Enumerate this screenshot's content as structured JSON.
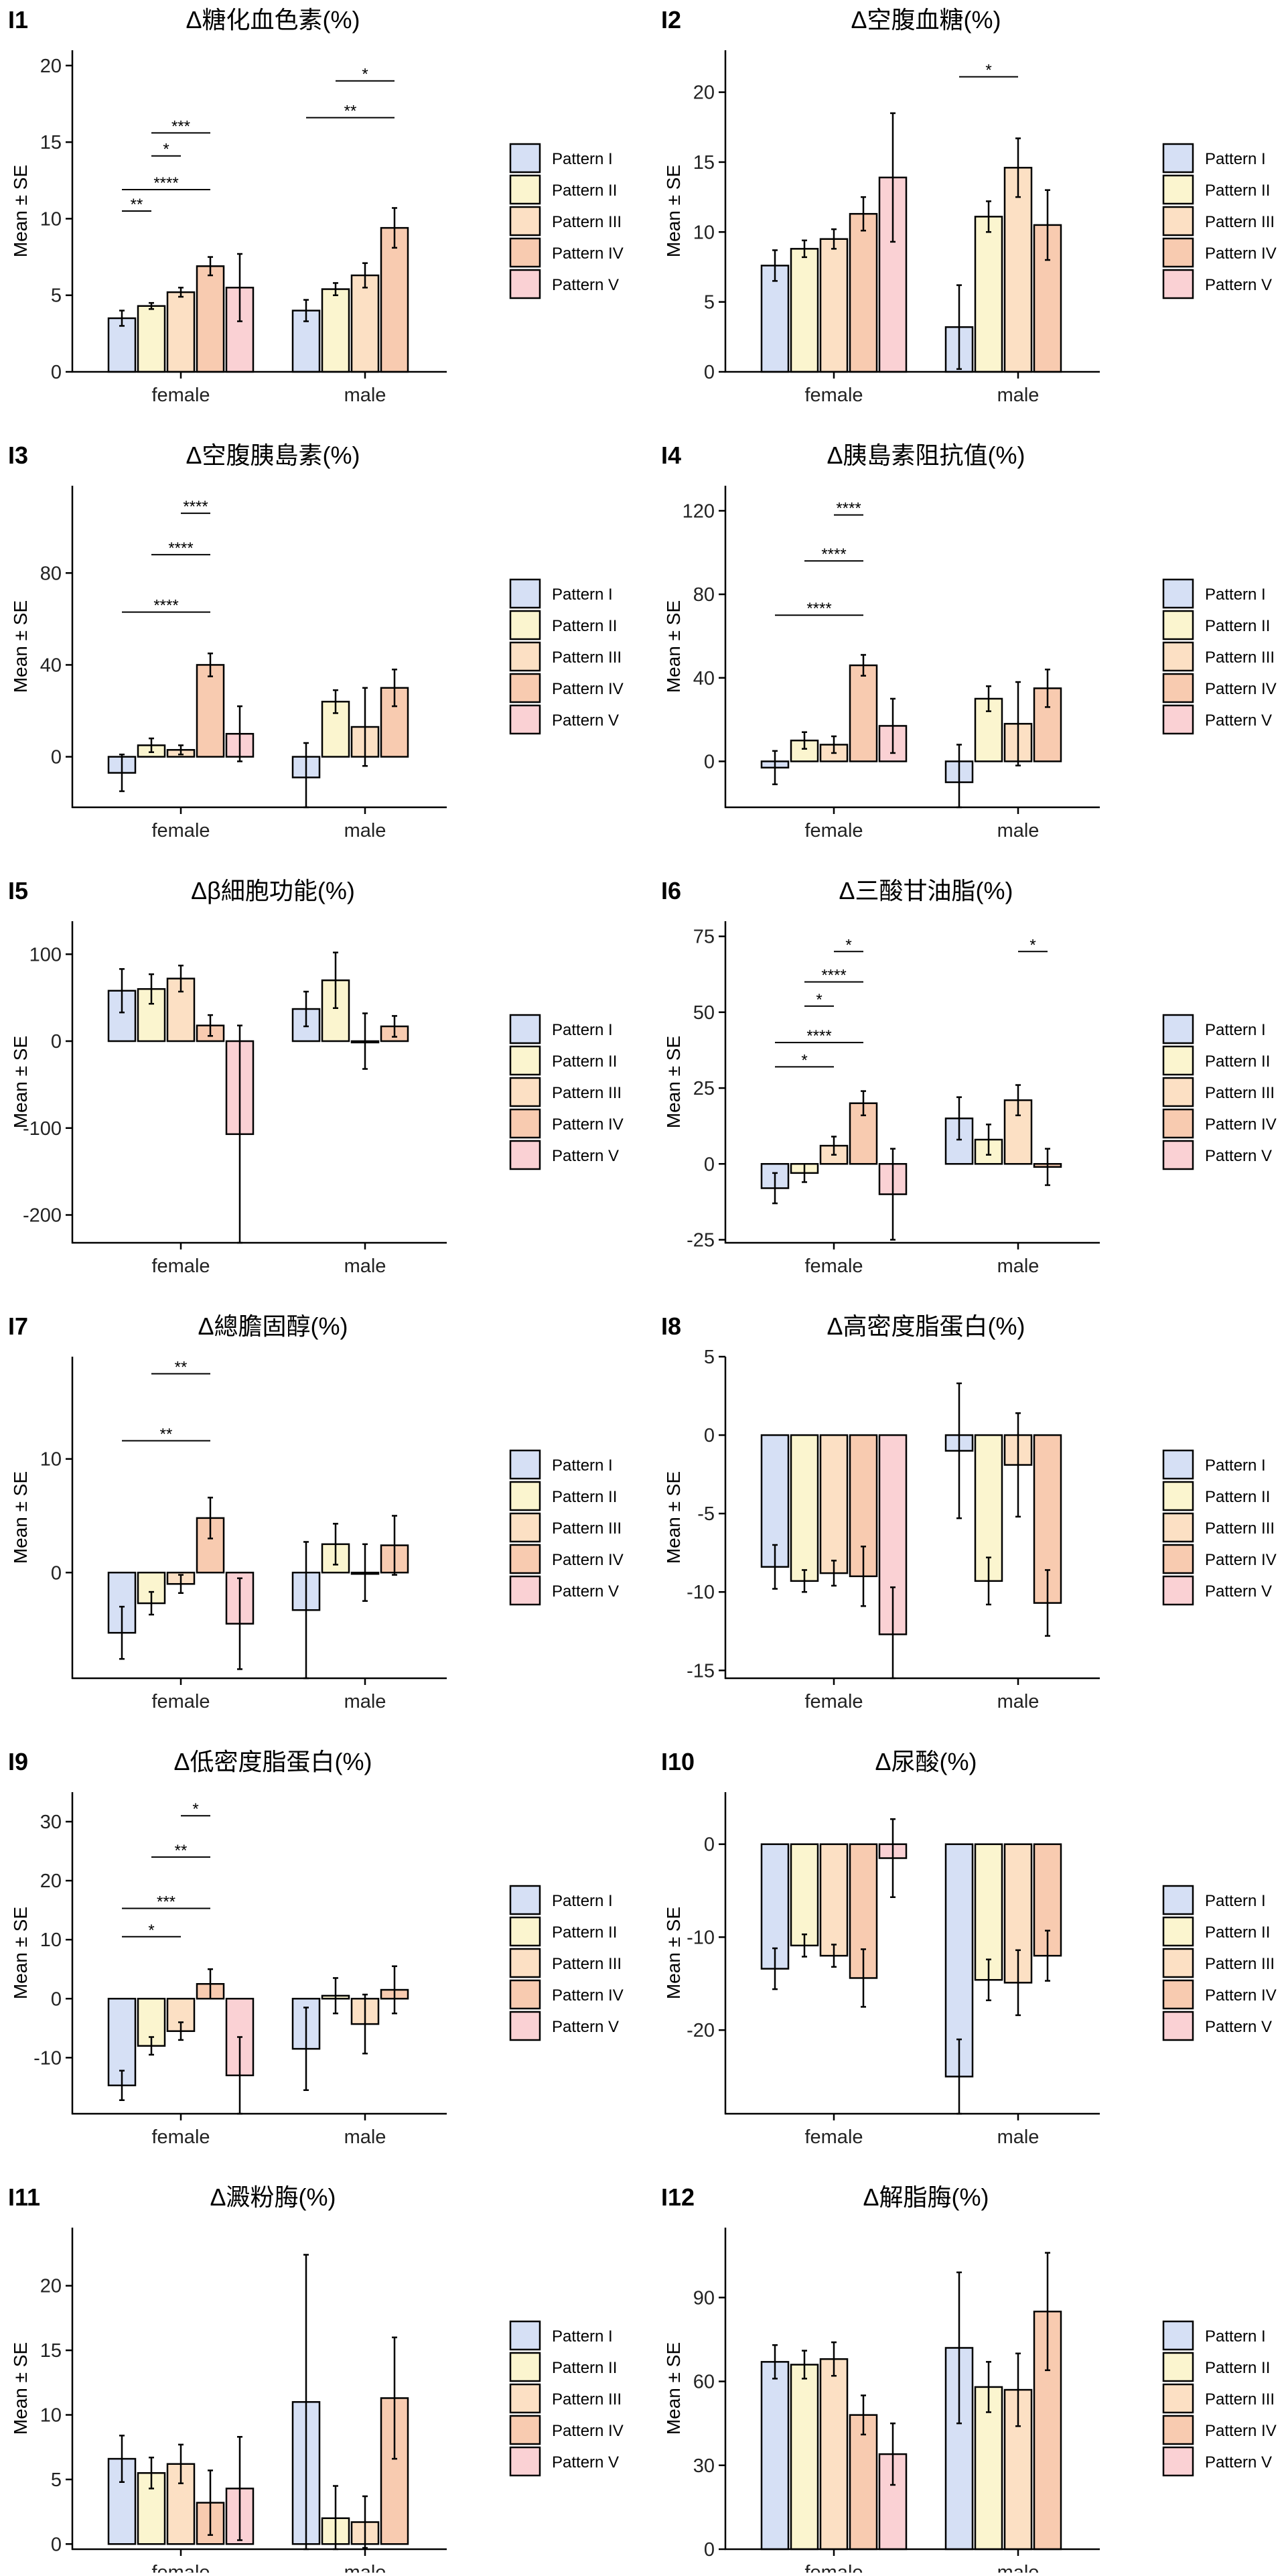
{
  "ylabel": "Mean ± SE",
  "legend": [
    "Pattern I",
    "Pattern II",
    "Pattern III",
    "Pattern IV",
    "Pattern V"
  ],
  "colors": [
    "#D6E0F5",
    "#FBF5CF",
    "#FCE0C4",
    "#F8CBB0",
    "#FAD1D4"
  ],
  "chart_data": [
    {
      "type": "bar",
      "tag": "I1",
      "title": "Δ糖化血色素(%)",
      "categories": [
        "female",
        "male"
      ],
      "ylim": [
        0,
        21
      ],
      "ticks": [
        0,
        5,
        10,
        15,
        20
      ],
      "series": [
        {
          "name": "Pattern I",
          "values": [
            3.5,
            4.0
          ],
          "se": [
            0.5,
            0.7
          ]
        },
        {
          "name": "Pattern II",
          "values": [
            4.3,
            5.4
          ],
          "se": [
            0.2,
            0.4
          ]
        },
        {
          "name": "Pattern III",
          "values": [
            5.2,
            6.3
          ],
          "se": [
            0.3,
            0.8
          ]
        },
        {
          "name": "Pattern IV",
          "values": [
            6.9,
            9.4
          ],
          "se": [
            0.6,
            1.3
          ]
        },
        {
          "name": "Pattern V",
          "values": [
            5.5,
            null
          ],
          "se": [
            2.2,
            null
          ]
        }
      ],
      "sig": [
        {
          "cat": 0,
          "from": 0,
          "to": 1,
          "y": 10.5,
          "label": "**"
        },
        {
          "cat": 0,
          "from": 0,
          "to": 3,
          "y": 11.9,
          "label": "****"
        },
        {
          "cat": 0,
          "from": 1,
          "to": 2,
          "y": 14.1,
          "label": "*"
        },
        {
          "cat": 0,
          "from": 1,
          "to": 3,
          "y": 15.6,
          "label": "***"
        },
        {
          "cat": 1,
          "from": 0,
          "to": 3,
          "y": 16.6,
          "label": "**"
        },
        {
          "cat": 1,
          "from": 1,
          "to": 3,
          "y": 19.0,
          "label": "*"
        }
      ]
    },
    {
      "type": "bar",
      "tag": "I2",
      "title": "Δ空腹血糖(%)",
      "categories": [
        "female",
        "male"
      ],
      "ylim": [
        0,
        23
      ],
      "ticks": [
        0,
        5,
        10,
        15,
        20
      ],
      "series": [
        {
          "name": "Pattern I",
          "values": [
            7.6,
            3.2
          ],
          "se": [
            1.1,
            3.0
          ]
        },
        {
          "name": "Pattern II",
          "values": [
            8.8,
            11.1
          ],
          "se": [
            0.6,
            1.1
          ]
        },
        {
          "name": "Pattern III",
          "values": [
            9.5,
            14.6
          ],
          "se": [
            0.7,
            2.1
          ]
        },
        {
          "name": "Pattern IV",
          "values": [
            11.3,
            10.5
          ],
          "se": [
            1.2,
            2.5
          ]
        },
        {
          "name": "Pattern V",
          "values": [
            13.9,
            null
          ],
          "se": [
            4.6,
            null
          ]
        }
      ],
      "sig": [
        {
          "cat": 1,
          "from": 0,
          "to": 2,
          "y": 21.1,
          "label": "*"
        }
      ]
    },
    {
      "type": "bar",
      "tag": "I3",
      "title": "Δ空腹胰島素(%)",
      "categories": [
        "female",
        "male"
      ],
      "ylim": [
        -22,
        118
      ],
      "ticks": [
        0,
        40,
        80
      ],
      "series": [
        {
          "name": "Pattern I",
          "values": [
            -7,
            -9
          ],
          "se": [
            8,
            15
          ]
        },
        {
          "name": "Pattern II",
          "values": [
            5,
            24
          ],
          "se": [
            3,
            5
          ]
        },
        {
          "name": "Pattern III",
          "values": [
            3,
            13
          ],
          "se": [
            2,
            17
          ]
        },
        {
          "name": "Pattern IV",
          "values": [
            40,
            30
          ],
          "se": [
            5,
            8
          ]
        },
        {
          "name": "Pattern V",
          "values": [
            10,
            null
          ],
          "se": [
            12,
            null
          ]
        }
      ],
      "sig": [
        {
          "cat": 0,
          "from": 0,
          "to": 3,
          "y": 63,
          "label": "****"
        },
        {
          "cat": 0,
          "from": 1,
          "to": 3,
          "y": 88,
          "label": "****"
        },
        {
          "cat": 0,
          "from": 2,
          "to": 3,
          "y": 106,
          "label": "****"
        }
      ]
    },
    {
      "type": "bar",
      "tag": "I4",
      "title": "Δ胰島素阻抗值(%)",
      "categories": [
        "female",
        "male"
      ],
      "ylim": [
        -22,
        132
      ],
      "ticks": [
        0,
        40,
        80,
        120
      ],
      "series": [
        {
          "name": "Pattern I",
          "values": [
            -3,
            -10
          ],
          "se": [
            8,
            18
          ]
        },
        {
          "name": "Pattern II",
          "values": [
            10,
            30
          ],
          "se": [
            4,
            6
          ]
        },
        {
          "name": "Pattern III",
          "values": [
            8,
            18
          ],
          "se": [
            4,
            20
          ]
        },
        {
          "name": "Pattern IV",
          "values": [
            46,
            35
          ],
          "se": [
            5,
            9
          ]
        },
        {
          "name": "Pattern V",
          "values": [
            17,
            null
          ],
          "se": [
            13,
            null
          ]
        }
      ],
      "sig": [
        {
          "cat": 0,
          "from": 0,
          "to": 3,
          "y": 70,
          "label": "****"
        },
        {
          "cat": 0,
          "from": 1,
          "to": 3,
          "y": 96,
          "label": "****"
        },
        {
          "cat": 0,
          "from": 2,
          "to": 3,
          "y": 118,
          "label": "****"
        }
      ]
    },
    {
      "type": "bar",
      "tag": "I5",
      "title": "Δβ細胞功能(%)",
      "categories": [
        "female",
        "male"
      ],
      "ylim": [
        -232,
        138
      ],
      "ticks": [
        -200,
        -100,
        0,
        100
      ],
      "series": [
        {
          "name": "Pattern I",
          "values": [
            58,
            37
          ],
          "se": [
            25,
            20
          ]
        },
        {
          "name": "Pattern II",
          "values": [
            60,
            70
          ],
          "se": [
            17,
            32
          ]
        },
        {
          "name": "Pattern III",
          "values": [
            72,
            0
          ],
          "se": [
            15,
            32
          ]
        },
        {
          "name": "Pattern IV",
          "values": [
            18,
            17
          ],
          "se": [
            12,
            12
          ]
        },
        {
          "name": "Pattern V",
          "values": [
            -107,
            null
          ],
          "se": [
            125,
            null
          ]
        }
      ],
      "sig": []
    },
    {
      "type": "bar",
      "tag": "I6",
      "title": "Δ三酸甘油脂(%)",
      "categories": [
        "female",
        "male"
      ],
      "ylim": [
        -26,
        80
      ],
      "ticks": [
        -25,
        0,
        25,
        50,
        75
      ],
      "series": [
        {
          "name": "Pattern I",
          "values": [
            -8,
            15
          ],
          "se": [
            5,
            7
          ]
        },
        {
          "name": "Pattern II",
          "values": [
            -3,
            8
          ],
          "se": [
            3,
            5
          ]
        },
        {
          "name": "Pattern III",
          "values": [
            6,
            21
          ],
          "se": [
            3,
            5
          ]
        },
        {
          "name": "Pattern IV",
          "values": [
            20,
            -1
          ],
          "se": [
            4,
            6
          ]
        },
        {
          "name": "Pattern V",
          "values": [
            -10,
            null
          ],
          "se": [
            15,
            null
          ]
        }
      ],
      "sig": [
        {
          "cat": 0,
          "from": 0,
          "to": 2,
          "y": 32,
          "label": "*"
        },
        {
          "cat": 0,
          "from": 0,
          "to": 3,
          "y": 40,
          "label": "****"
        },
        {
          "cat": 0,
          "from": 1,
          "to": 2,
          "y": 52,
          "label": "*"
        },
        {
          "cat": 0,
          "from": 1,
          "to": 3,
          "y": 60,
          "label": "****"
        },
        {
          "cat": 0,
          "from": 2,
          "to": 3,
          "y": 70,
          "label": "*"
        },
        {
          "cat": 1,
          "from": 2,
          "to": 3,
          "y": 70,
          "label": "*"
        }
      ]
    },
    {
      "type": "bar",
      "tag": "I7",
      "title": "Δ總膽固醇(%)",
      "categories": [
        "female",
        "male"
      ],
      "ylim": [
        -9.3,
        19
      ],
      "ticks": [
        0,
        10
      ],
      "series": [
        {
          "name": "Pattern I",
          "values": [
            -5.3,
            -3.3
          ],
          "se": [
            2.3,
            6.0
          ]
        },
        {
          "name": "Pattern II",
          "values": [
            -2.7,
            2.5
          ],
          "se": [
            1.0,
            1.8
          ]
        },
        {
          "name": "Pattern III",
          "values": [
            -1.0,
            0.0
          ],
          "se": [
            0.8,
            2.5
          ]
        },
        {
          "name": "Pattern IV",
          "values": [
            4.8,
            2.4
          ],
          "se": [
            1.8,
            2.6
          ]
        },
        {
          "name": "Pattern V",
          "values": [
            -4.5,
            null
          ],
          "se": [
            4.0,
            null
          ]
        }
      ],
      "sig": [
        {
          "cat": 0,
          "from": 0,
          "to": 3,
          "y": 11.6,
          "label": "**"
        },
        {
          "cat": 0,
          "from": 1,
          "to": 3,
          "y": 17.5,
          "label": "**"
        }
      ]
    },
    {
      "type": "bar",
      "tag": "I8",
      "title": "Δ高密度脂蛋白(%)",
      "categories": [
        "female",
        "male"
      ],
      "ylim": [
        -15.5,
        5
      ],
      "ticks": [
        -15,
        -10,
        -5,
        0,
        5
      ],
      "series": [
        {
          "name": "Pattern I",
          "values": [
            -8.4,
            -1.0
          ],
          "se": [
            1.4,
            4.3
          ]
        },
        {
          "name": "Pattern II",
          "values": [
            -9.3,
            -9.3
          ],
          "se": [
            0.7,
            1.5
          ]
        },
        {
          "name": "Pattern III",
          "values": [
            -8.8,
            -1.9
          ],
          "se": [
            0.8,
            3.3
          ]
        },
        {
          "name": "Pattern IV",
          "values": [
            -9.0,
            -10.7
          ],
          "se": [
            1.9,
            2.1
          ]
        },
        {
          "name": "Pattern V",
          "values": [
            -12.7,
            null
          ],
          "se": [
            3.0,
            null
          ]
        }
      ],
      "sig": []
    },
    {
      "type": "bar",
      "tag": "I9",
      "title": "Δ低密度脂蛋白(%)",
      "categories": [
        "female",
        "male"
      ],
      "ylim": [
        -19.5,
        35
      ],
      "ticks": [
        -10,
        0,
        10,
        20,
        30
      ],
      "series": [
        {
          "name": "Pattern I",
          "values": [
            -14.7,
            -8.5
          ],
          "se": [
            2.5,
            7.0
          ]
        },
        {
          "name": "Pattern II",
          "values": [
            -8.0,
            0.5
          ],
          "se": [
            1.5,
            3.0
          ]
        },
        {
          "name": "Pattern III",
          "values": [
            -5.5,
            -4.3
          ],
          "se": [
            1.5,
            5.0
          ]
        },
        {
          "name": "Pattern IV",
          "values": [
            2.5,
            1.5
          ],
          "se": [
            2.5,
            4.0
          ]
        },
        {
          "name": "Pattern V",
          "values": [
            -13.0,
            null
          ],
          "se": [
            6.5,
            null
          ]
        }
      ],
      "sig": [
        {
          "cat": 0,
          "from": 0,
          "to": 2,
          "y": 10.5,
          "label": "*"
        },
        {
          "cat": 0,
          "from": 0,
          "to": 3,
          "y": 15.3,
          "label": "***"
        },
        {
          "cat": 0,
          "from": 1,
          "to": 3,
          "y": 24.0,
          "label": "**"
        },
        {
          "cat": 0,
          "from": 2,
          "to": 3,
          "y": 31.0,
          "label": "*"
        }
      ]
    },
    {
      "type": "bar",
      "tag": "I10",
      "title": "Δ尿酸(%)",
      "categories": [
        "female",
        "male"
      ],
      "ylim": [
        -29,
        5.6
      ],
      "ticks": [
        -20,
        -10,
        0
      ],
      "series": [
        {
          "name": "Pattern I",
          "values": [
            -13.4,
            -25.0
          ],
          "se": [
            2.2,
            4.0
          ]
        },
        {
          "name": "Pattern II",
          "values": [
            -10.9,
            -14.6
          ],
          "se": [
            1.2,
            2.2
          ]
        },
        {
          "name": "Pattern III",
          "values": [
            -12.0,
            -14.9
          ],
          "se": [
            1.2,
            3.5
          ]
        },
        {
          "name": "Pattern IV",
          "values": [
            -14.4,
            -12.0
          ],
          "se": [
            3.1,
            2.7
          ]
        },
        {
          "name": "Pattern V",
          "values": [
            -1.5,
            null
          ],
          "se": [
            4.2,
            null
          ]
        }
      ],
      "sig": []
    },
    {
      "type": "bar",
      "tag": "I11",
      "title": "Δ澱粉脢(%)",
      "categories": [
        "female",
        "male"
      ],
      "ylim": [
        -0.4,
        24.5
      ],
      "ticks": [
        0,
        5,
        10,
        15,
        20
      ],
      "series": [
        {
          "name": "Pattern I",
          "values": [
            6.6,
            11.0
          ],
          "se": [
            1.8,
            11.4
          ]
        },
        {
          "name": "Pattern II",
          "values": [
            5.5,
            2.0
          ],
          "se": [
            1.2,
            2.5
          ]
        },
        {
          "name": "Pattern III",
          "values": [
            6.2,
            1.7
          ],
          "se": [
            1.5,
            2.0
          ]
        },
        {
          "name": "Pattern IV",
          "values": [
            3.2,
            11.3
          ],
          "se": [
            2.5,
            4.7
          ]
        },
        {
          "name": "Pattern V",
          "values": [
            4.3,
            null
          ],
          "se": [
            4.0,
            null
          ]
        }
      ],
      "sig": []
    },
    {
      "type": "bar",
      "tag": "I12",
      "title": "Δ解脂脢(%)",
      "categories": [
        "female",
        "male"
      ],
      "ylim": [
        0,
        115
      ],
      "ticks": [
        0,
        30,
        60,
        90
      ],
      "series": [
        {
          "name": "Pattern I",
          "values": [
            67,
            72
          ],
          "se": [
            6,
            27
          ]
        },
        {
          "name": "Pattern II",
          "values": [
            66,
            58
          ],
          "se": [
            5,
            9
          ]
        },
        {
          "name": "Pattern III",
          "values": [
            68,
            57
          ],
          "se": [
            6,
            13
          ]
        },
        {
          "name": "Pattern IV",
          "values": [
            48,
            85
          ],
          "se": [
            7,
            21
          ]
        },
        {
          "name": "Pattern V",
          "values": [
            34,
            null
          ],
          "se": [
            11,
            null
          ]
        }
      ],
      "sig": []
    }
  ]
}
